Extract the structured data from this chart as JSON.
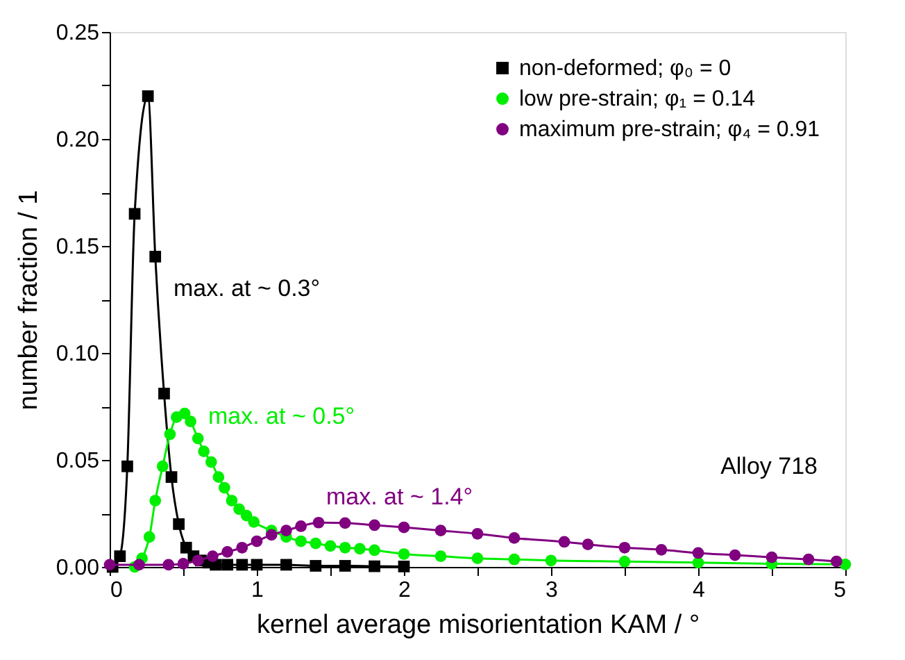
{
  "chart_data": {
    "type": "line",
    "xlabel": "kernel average misorientation KAM / °",
    "ylabel": "number fraction / 1",
    "xlim": [
      0,
      5
    ],
    "ylim": [
      0,
      0.25
    ],
    "xticks": [
      0,
      {
        "value": 0.5,
        "label": null
      },
      1,
      {
        "value": 1.5,
        "label": null
      },
      2,
      {
        "value": 2.5,
        "label": null
      },
      3,
      {
        "value": 3.5,
        "label": null
      },
      4,
      {
        "value": 4.5,
        "label": null
      },
      5
    ],
    "yticks": [
      {
        "value": 0,
        "label": "0.00"
      },
      {
        "value": 0.025,
        "label": null
      },
      0.05,
      {
        "value": 0.075,
        "label": null
      },
      {
        "value": 0.1,
        "label": "0.10"
      },
      {
        "value": 0.125,
        "label": null
      },
      0.15,
      {
        "value": 0.175,
        "label": null
      },
      {
        "value": 0.2,
        "label": "0.20"
      },
      {
        "value": 0.225,
        "label": null
      },
      0.25
    ],
    "grid": false,
    "legend": "top right",
    "line_style": "solid",
    "series": [
      {
        "name": "non-deformed; φ₀ = 0",
        "color": "#000000",
        "marker": "square",
        "x": [
          0.02,
          0.07,
          0.12,
          0.17,
          0.26,
          0.31,
          0.37,
          0.42,
          0.47,
          0.52,
          0.57,
          0.62,
          0.67,
          0.72,
          0.8,
          0.9,
          1.0,
          1.2,
          1.4,
          1.6,
          1.8,
          2.0
        ],
        "values": [
          0.0,
          0.005,
          0.047,
          0.165,
          0.22,
          0.145,
          0.081,
          0.042,
          0.02,
          0.009,
          0.005,
          0.003,
          0.002,
          0.001,
          0.001,
          0.001,
          0.001,
          0.001,
          0.0005,
          0.0005,
          0.0003,
          0.0002
        ]
      },
      {
        "name": "low pre-strain; φ₁ = 0.14",
        "color": "#00ee00",
        "marker": "circle",
        "x": [
          0.17,
          0.22,
          0.27,
          0.31,
          0.36,
          0.41,
          0.455,
          0.51,
          0.55,
          0.6,
          0.64,
          0.69,
          0.74,
          0.78,
          0.83,
          0.88,
          0.93,
          0.98,
          1.1,
          1.2,
          1.3,
          1.4,
          1.5,
          1.6,
          1.7,
          1.8,
          2.0,
          2.25,
          2.5,
          2.75,
          3.0,
          3.5,
          4.0,
          4.5,
          5.0
        ],
        "values": [
          0.0,
          0.004,
          0.014,
          0.031,
          0.047,
          0.062,
          0.07,
          0.0717,
          0.068,
          0.06,
          0.054,
          0.049,
          0.042,
          0.037,
          0.031,
          0.027,
          0.024,
          0.021,
          0.017,
          0.014,
          0.012,
          0.011,
          0.0098,
          0.009,
          0.0085,
          0.0078,
          0.006,
          0.005,
          0.004,
          0.0035,
          0.003,
          0.0025,
          0.002,
          0.0015,
          0.0012
        ]
      },
      {
        "name": "maximum pre-strain; φ₄ = 0.91",
        "color": "#800080",
        "marker": "circle",
        "x": [
          0.0,
          0.2,
          0.4,
          0.5,
          0.6,
          0.7,
          0.8,
          0.9,
          1.0,
          1.1,
          1.2,
          1.3,
          1.42,
          1.6,
          1.8,
          2.0,
          2.25,
          2.5,
          2.75,
          3.09,
          3.25,
          3.5,
          3.75,
          4.0,
          4.25,
          4.5,
          4.75,
          4.94
        ],
        "values": [
          0.001,
          0.001,
          0.001,
          0.0015,
          0.003,
          0.005,
          0.007,
          0.009,
          0.012,
          0.015,
          0.017,
          0.019,
          0.0207,
          0.0205,
          0.0195,
          0.0185,
          0.017,
          0.0155,
          0.0135,
          0.0117,
          0.0105,
          0.009,
          0.008,
          0.0065,
          0.0055,
          0.0045,
          0.0035,
          0.0026
        ]
      }
    ],
    "annotations": [
      "max. at ~ 0.3°",
      "max. at ~ 0.5°",
      "max. at ~ 1.4°",
      "Alloy 718"
    ]
  }
}
